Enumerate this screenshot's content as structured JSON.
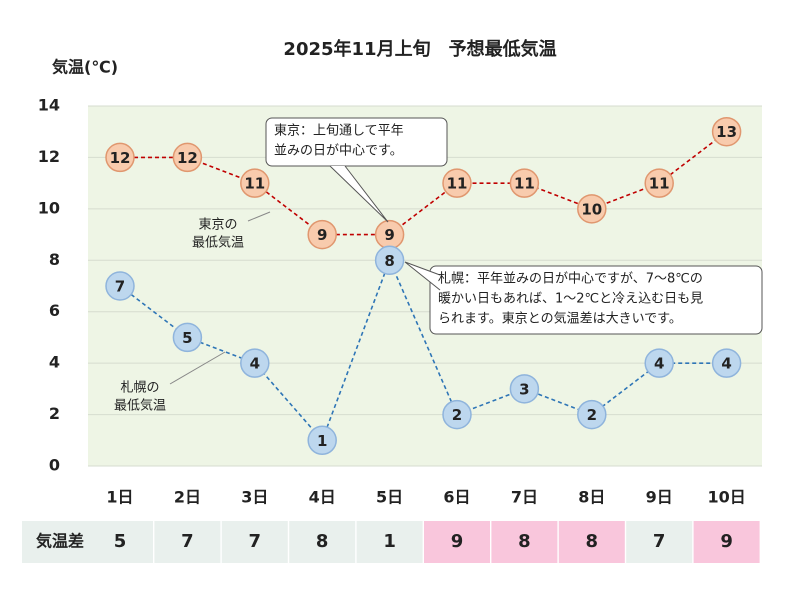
{
  "chart_data": {
    "type": "line",
    "title": "2025年11月上旬　予想最低気温",
    "y_label": "気温(℃)",
    "categories": [
      "1日",
      "2日",
      "3日",
      "4日",
      "5日",
      "6日",
      "7日",
      "8日",
      "9日",
      "10日"
    ],
    "ylim": [
      0,
      14
    ],
    "yticks": [
      0,
      2,
      4,
      6,
      8,
      10,
      12,
      14
    ],
    "grid": true,
    "series": [
      {
        "name": "東京の 最低気温",
        "name_lines": [
          "東京の",
          "最低気温"
        ],
        "color": "#c00000",
        "marker_fill": "#f8cbad",
        "marker_stroke": "#e0976f",
        "values": [
          12,
          12,
          11,
          9,
          9,
          11,
          11,
          10,
          11,
          13
        ],
        "label_colors": [
          "#ffffff",
          "#ffffff",
          "#ffffff",
          "#1010d0",
          "#1010d0",
          "#ffffff",
          "#ffffff",
          "#ffffff",
          "#ffffff",
          "#e00000"
        ]
      },
      {
        "name": "札幌の 最低気温",
        "name_lines": [
          "札幌の",
          "最低気温"
        ],
        "color": "#2e75b6",
        "marker_fill": "#bdd7ee",
        "marker_stroke": "#8fb4dc",
        "values": [
          7,
          5,
          4,
          1,
          8,
          2,
          3,
          2,
          4,
          4
        ],
        "label_colors": [
          "#e00000",
          "#ffffff",
          "#ffffff",
          "#1010d0",
          "#e00000",
          "#1010d0",
          "#ffffff",
          "#ffffff",
          "#ffffff",
          "#ffffff"
        ]
      }
    ],
    "annotations": [
      {
        "lines": [
          "東京：上旬通して平年",
          "並みの日が中心です。"
        ]
      },
      {
        "lines": [
          "札幌：平年並みの日が中心ですが、7～8℃の",
          "暖かい日もあれば、1～2℃と冷え込む日も見",
          "られます。東京との気温差は大きいです。"
        ]
      }
    ],
    "difference": {
      "label": "気温差",
      "values": [
        5,
        7,
        7,
        8,
        1,
        9,
        8,
        8,
        7,
        9
      ],
      "highlight": [
        false,
        false,
        false,
        false,
        false,
        true,
        true,
        true,
        false,
        true
      ],
      "color": "#e9f0ed",
      "highlight_color": "#f9c6dc"
    }
  }
}
